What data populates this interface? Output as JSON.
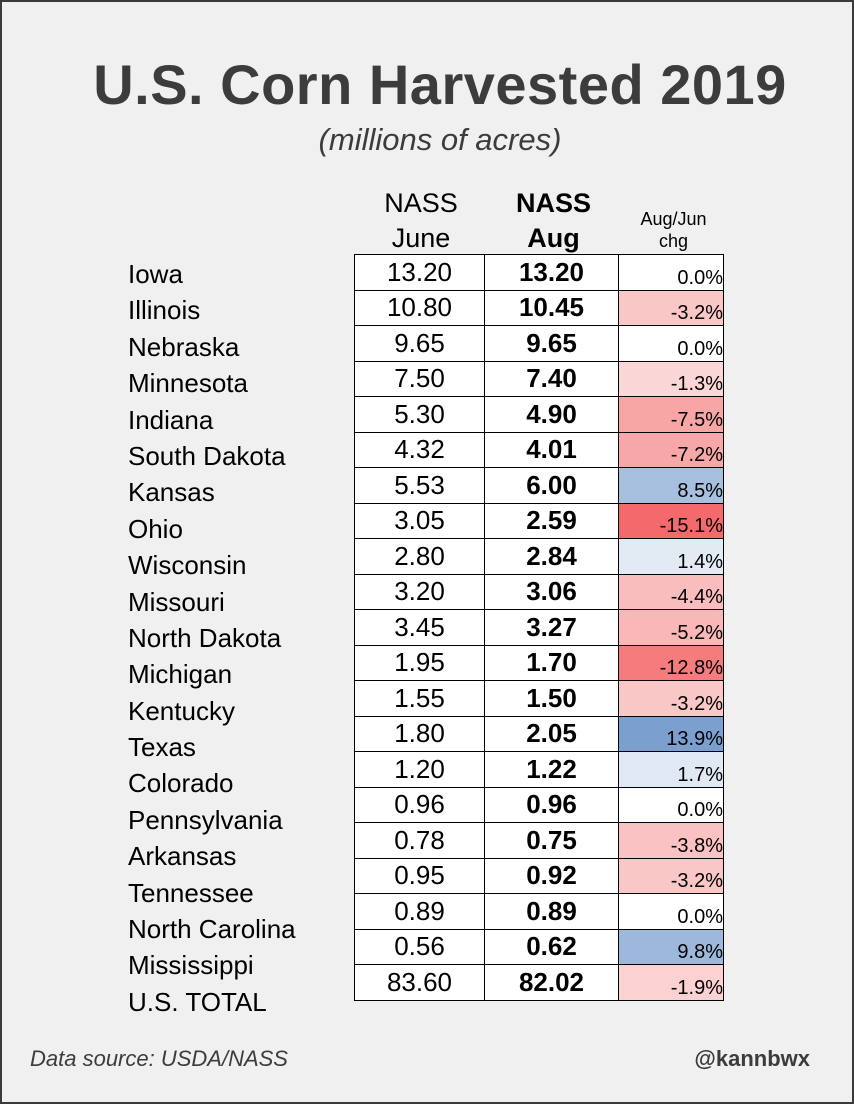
{
  "title": "U.S. Corn Harvested 2019",
  "subtitle": "(millions of acres)",
  "columns": {
    "june_line1": "NASS",
    "june_line2": "June",
    "aug_line1": "NASS",
    "aug_line2": "Aug",
    "chg_line1": "Aug/Jun",
    "chg_line2": "chg"
  },
  "footer": {
    "source": "Data source: USDA/NASS",
    "handle": "@kannbwx"
  },
  "colors": {
    "neg_strong": "#f4696b",
    "neg_light": "#fce0e0",
    "pos_strong": "#7ba0cf",
    "pos_light": "#eef2f8",
    "neutral": "#ffffff"
  },
  "chart_data": {
    "type": "table",
    "title": "U.S. Corn Harvested 2019",
    "subtitle": "(millions of acres)",
    "headers": [
      "NASS June",
      "NASS Aug",
      "Aug/Jun chg"
    ],
    "rows": [
      {
        "state": "Iowa",
        "june": "13.20",
        "aug": "13.20",
        "chg": "0.0%",
        "pct": 0.0
      },
      {
        "state": "Illinois",
        "june": "10.80",
        "aug": "10.45",
        "chg": "-3.2%",
        "pct": -3.2
      },
      {
        "state": "Nebraska",
        "june": "9.65",
        "aug": "9.65",
        "chg": "0.0%",
        "pct": 0.0
      },
      {
        "state": "Minnesota",
        "june": "7.50",
        "aug": "7.40",
        "chg": "-1.3%",
        "pct": -1.3
      },
      {
        "state": "Indiana",
        "june": "5.30",
        "aug": "4.90",
        "chg": "-7.5%",
        "pct": -7.5
      },
      {
        "state": "South Dakota",
        "june": "4.32",
        "aug": "4.01",
        "chg": "-7.2%",
        "pct": -7.2
      },
      {
        "state": "Kansas",
        "june": "5.53",
        "aug": "6.00",
        "chg": "8.5%",
        "pct": 8.5
      },
      {
        "state": "Ohio",
        "june": "3.05",
        "aug": "2.59",
        "chg": "-15.1%",
        "pct": -15.1
      },
      {
        "state": "Wisconsin",
        "june": "2.80",
        "aug": "2.84",
        "chg": "1.4%",
        "pct": 1.4
      },
      {
        "state": "Missouri",
        "june": "3.20",
        "aug": "3.06",
        "chg": "-4.4%",
        "pct": -4.4
      },
      {
        "state": "North Dakota",
        "june": "3.45",
        "aug": "3.27",
        "chg": "-5.2%",
        "pct": -5.2
      },
      {
        "state": "Michigan",
        "june": "1.95",
        "aug": "1.70",
        "chg": "-12.8%",
        "pct": -12.8
      },
      {
        "state": "Kentucky",
        "june": "1.55",
        "aug": "1.50",
        "chg": "-3.2%",
        "pct": -3.2
      },
      {
        "state": "Texas",
        "june": "1.80",
        "aug": "2.05",
        "chg": "13.9%",
        "pct": 13.9
      },
      {
        "state": "Colorado",
        "june": "1.20",
        "aug": "1.22",
        "chg": "1.7%",
        "pct": 1.7
      },
      {
        "state": "Pennsylvania",
        "june": "0.96",
        "aug": "0.96",
        "chg": "0.0%",
        "pct": 0.0
      },
      {
        "state": "Arkansas",
        "june": "0.78",
        "aug": "0.75",
        "chg": "-3.8%",
        "pct": -3.8
      },
      {
        "state": "Tennessee",
        "june": "0.95",
        "aug": "0.92",
        "chg": "-3.2%",
        "pct": -3.2
      },
      {
        "state": "North Carolina",
        "june": "0.89",
        "aug": "0.89",
        "chg": "0.0%",
        "pct": 0.0
      },
      {
        "state": "Mississippi",
        "june": "0.56",
        "aug": "0.62",
        "chg": "9.8%",
        "pct": 9.8
      },
      {
        "state": "U.S. TOTAL",
        "june": "83.60",
        "aug": "82.02",
        "chg": "-1.9%",
        "pct": -1.9
      }
    ]
  }
}
